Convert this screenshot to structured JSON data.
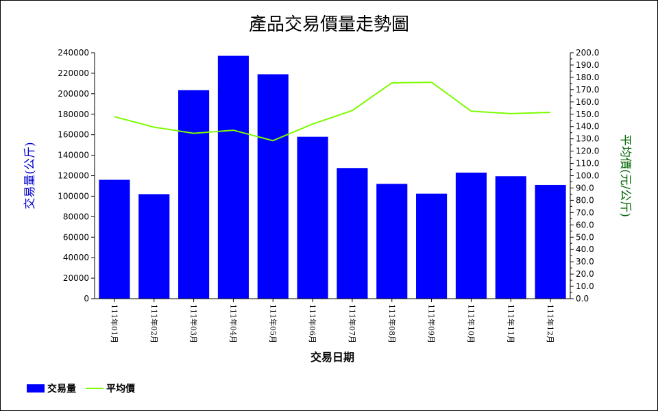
{
  "chart_data": {
    "type": "bar",
    "title": "產品交易價量走勢圖",
    "xlabel": "交易日期",
    "ylabel": "交易量(公斤)",
    "y2label": "平均價(元/公斤)",
    "categories": [
      "111年01月",
      "111年02月",
      "111年03月",
      "111年04月",
      "111年05月",
      "111年06月",
      "111年07月",
      "111年08月",
      "111年09月",
      "111年10月",
      "111年11月",
      "111年12月"
    ],
    "series": [
      {
        "name": "交易量",
        "type": "bar",
        "axis": "left",
        "color": "#0000ff",
        "values": [
          116000,
          102000,
          203500,
          237000,
          219000,
          158000,
          127500,
          112000,
          102500,
          123000,
          119500,
          111000
        ]
      },
      {
        "name": "平均價",
        "type": "line",
        "axis": "right",
        "color": "#7cfc00",
        "values": [
          148.0,
          139.5,
          134.5,
          137.0,
          128.5,
          142.0,
          153.0,
          175.5,
          176.0,
          152.5,
          150.5,
          151.5
        ]
      }
    ],
    "ylim": [
      0,
      240000
    ],
    "y_ticks": [
      "0",
      "20000",
      "40000",
      "60000",
      "80000",
      "100000",
      "120000",
      "140000",
      "160000",
      "180000",
      "200000",
      "220000",
      "240000"
    ],
    "y2lim": [
      0,
      200
    ],
    "y2_ticks": [
      "0.0",
      "10.0",
      "20.0",
      "30.0",
      "40.0",
      "50.0",
      "60.0",
      "70.0",
      "80.0",
      "90.0",
      "100.0",
      "110.0",
      "120.0",
      "130.0",
      "140.0",
      "150.0",
      "160.0",
      "170.0",
      "180.0",
      "190.0",
      "200.0"
    ],
    "grid": false,
    "legend_position": "bottom-left",
    "left_axis_color": "#0000cd",
    "right_axis_color": "#006400"
  }
}
